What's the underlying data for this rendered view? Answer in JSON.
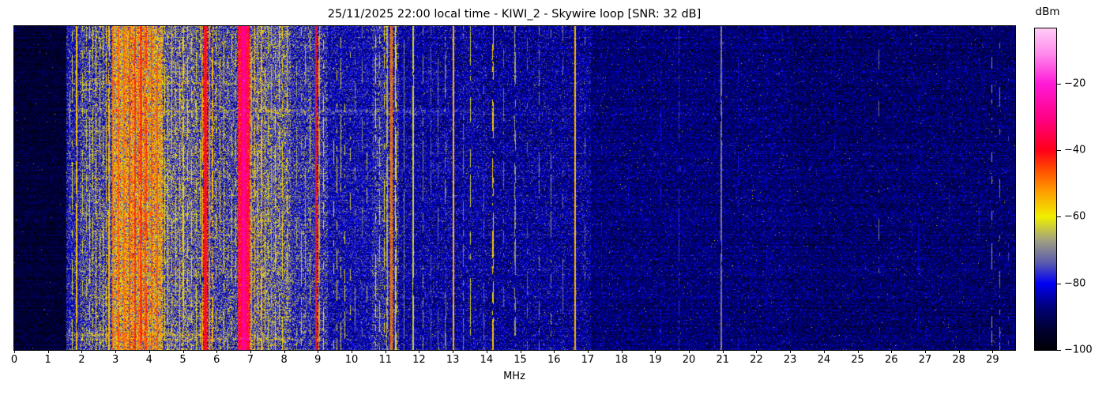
{
  "title": "25/11/2025 22:00 local time - KIWI_2 - Skywire loop [SNR: 32 dB]",
  "chart_data": {
    "type": "heatmap",
    "subtype": "radio-spectrum-waterfall",
    "title": "25/11/2025 22:00 local time - KIWI_2 - Skywire loop [SNR: 32 dB]",
    "xlabel": "MHz",
    "x_range_mhz": [
      0,
      29.67
    ],
    "x_ticks": [
      0,
      1,
      2,
      3,
      4,
      5,
      6,
      7,
      8,
      9,
      10,
      11,
      12,
      13,
      14,
      15,
      16,
      17,
      18,
      19,
      20,
      21,
      22,
      23,
      24,
      25,
      26,
      27,
      28,
      29
    ],
    "y_axis": "time (no ticks or labels shown)",
    "grid": false,
    "colorbar": {
      "label": "dBm",
      "vmax_dbm": -3.4,
      "vmin_dbm": -100,
      "ticks": [
        {
          "value": -20,
          "label": "−20"
        },
        {
          "value": -40,
          "label": "−40"
        },
        {
          "value": -60,
          "label": "−60"
        },
        {
          "value": -80,
          "label": "−80"
        },
        {
          "value": -100,
          "label": "−100"
        }
      ],
      "colormap_stops_dbm_hex": [
        [
          -100,
          "#000005"
        ],
        [
          -94,
          "#000030"
        ],
        [
          -87,
          "#00007a"
        ],
        [
          -80,
          "#0000f5"
        ],
        [
          -74,
          "#5858b0"
        ],
        [
          -67,
          "#a0a080"
        ],
        [
          -60,
          "#f0f000"
        ],
        [
          -52,
          "#ff9800"
        ],
        [
          -46,
          "#ff4e00"
        ],
        [
          -40,
          "#ff0018"
        ],
        [
          -31,
          "#ff0080"
        ],
        [
          -20,
          "#ff1ad8"
        ],
        [
          -11,
          "#ff8aec"
        ],
        [
          -3.4,
          "#ffccf6"
        ]
      ]
    },
    "noise_floor_bands_legend": [
      "f_start_mhz",
      "f_end_mhz",
      "base_dbm",
      "sigma_db"
    ],
    "noise_floor_bands": [
      [
        0.0,
        1.55,
        -94,
        4
      ],
      [
        1.55,
        1.95,
        -80,
        7
      ],
      [
        1.95,
        2.9,
        -76,
        9
      ],
      [
        2.9,
        4.4,
        -62,
        10
      ],
      [
        4.4,
        5.45,
        -73,
        9
      ],
      [
        5.45,
        6.62,
        -76,
        9
      ],
      [
        6.62,
        6.98,
        -38,
        6
      ],
      [
        6.98,
        8.2,
        -73,
        9
      ],
      [
        8.2,
        9.3,
        -78,
        8
      ],
      [
        9.3,
        10.6,
        -82,
        6
      ],
      [
        10.6,
        11.4,
        -79,
        8
      ],
      [
        11.4,
        14.0,
        -84,
        6
      ],
      [
        14.0,
        17.1,
        -85,
        6
      ],
      [
        17.1,
        23.0,
        -88,
        5
      ],
      [
        23.0,
        29.67,
        -89,
        5
      ]
    ],
    "carriers_legend": [
      "freq_mhz",
      "peak_dbm",
      "width_px",
      "continuity_0_1"
    ],
    "carriers": [
      [
        1.63,
        -66,
        1,
        0.35
      ],
      [
        1.72,
        -62,
        1,
        0.5
      ],
      [
        1.85,
        -56,
        2,
        0.95
      ],
      [
        2.02,
        -63,
        1,
        0.5
      ],
      [
        2.12,
        -66,
        1,
        0.4
      ],
      [
        2.22,
        -62,
        1,
        0.6
      ],
      [
        2.32,
        -60,
        1,
        0.7
      ],
      [
        2.42,
        -58,
        1,
        0.75
      ],
      [
        2.52,
        -62,
        1,
        0.6
      ],
      [
        2.62,
        -59,
        1,
        0.7
      ],
      [
        2.72,
        -57,
        1,
        0.72
      ],
      [
        2.82,
        -55,
        2,
        0.8
      ],
      [
        2.92,
        -50,
        2,
        0.85
      ],
      [
        3.0,
        -52,
        1,
        0.8
      ],
      [
        3.08,
        -48,
        2,
        0.85
      ],
      [
        3.17,
        -54,
        1,
        0.8
      ],
      [
        3.25,
        -49,
        2,
        0.85
      ],
      [
        3.33,
        -52,
        1,
        0.8
      ],
      [
        3.42,
        -46,
        2,
        0.9
      ],
      [
        3.5,
        -50,
        1,
        0.85
      ],
      [
        3.58,
        -44,
        2,
        0.9
      ],
      [
        3.67,
        -48,
        1,
        0.85
      ],
      [
        3.75,
        -42,
        3,
        0.95
      ],
      [
        3.84,
        -47,
        1,
        0.85
      ],
      [
        3.92,
        -45,
        2,
        0.9
      ],
      [
        4.0,
        -50,
        1,
        0.8
      ],
      [
        4.08,
        -47,
        2,
        0.85
      ],
      [
        4.17,
        -51,
        1,
        0.8
      ],
      [
        4.25,
        -48,
        2,
        0.85
      ],
      [
        4.33,
        -53,
        1,
        0.8
      ],
      [
        4.45,
        -58,
        1,
        0.7
      ],
      [
        4.55,
        -60,
        1,
        0.65
      ],
      [
        4.65,
        -57,
        1,
        0.7
      ],
      [
        4.78,
        -59,
        1,
        0.65
      ],
      [
        4.9,
        -56,
        1,
        0.7
      ],
      [
        5.0,
        -58,
        2,
        0.75
      ],
      [
        5.12,
        -61,
        1,
        0.6
      ],
      [
        5.25,
        -59,
        1,
        0.65
      ],
      [
        5.38,
        -62,
        1,
        0.55
      ],
      [
        5.5,
        -60,
        1,
        0.6
      ],
      [
        5.58,
        -52,
        2,
        0.8
      ],
      [
        5.67,
        -38,
        4,
        1
      ],
      [
        5.78,
        -50,
        2,
        0.8
      ],
      [
        5.88,
        -55,
        2,
        0.7
      ],
      [
        5.98,
        -60,
        1,
        0.6
      ],
      [
        6.08,
        -57,
        1,
        0.65
      ],
      [
        6.2,
        -60,
        1,
        0.5
      ],
      [
        6.32,
        -63,
        1,
        0.45
      ],
      [
        6.45,
        -60,
        1,
        0.55
      ],
      [
        6.55,
        -56,
        1,
        0.65
      ],
      [
        6.79,
        -29,
        7,
        1
      ],
      [
        7.02,
        -52,
        2,
        0.8
      ],
      [
        7.12,
        -56,
        1,
        0.7
      ],
      [
        7.22,
        -58,
        1,
        0.65
      ],
      [
        7.32,
        -55,
        2,
        0.75
      ],
      [
        7.42,
        -58,
        1,
        0.65
      ],
      [
        7.52,
        -61,
        1,
        0.55
      ],
      [
        7.62,
        -66,
        1,
        0.5
      ],
      [
        7.72,
        -59,
        1,
        0.6
      ],
      [
        7.85,
        -62,
        1,
        0.5
      ],
      [
        7.95,
        -58,
        1,
        0.6
      ],
      [
        8.08,
        -61,
        1,
        0.5
      ],
      [
        8.35,
        -68,
        1,
        0.45
      ],
      [
        8.5,
        -64,
        1,
        0.5
      ],
      [
        8.62,
        -66,
        1,
        0.4
      ],
      [
        8.75,
        -63,
        1,
        0.5
      ],
      [
        8.95,
        -40,
        2,
        1
      ],
      [
        9.05,
        -52,
        2,
        0.7
      ],
      [
        9.15,
        -60,
        1,
        0.5
      ],
      [
        9.45,
        -62,
        1,
        0.35
      ],
      [
        9.55,
        -60,
        1,
        0.4
      ],
      [
        9.68,
        -63,
        1,
        0.35
      ],
      [
        9.8,
        -61,
        1,
        0.35
      ],
      [
        9.95,
        -64,
        1,
        0.3
      ],
      [
        10.1,
        -68,
        1,
        0.3
      ],
      [
        10.3,
        -70,
        1,
        0.25
      ],
      [
        10.45,
        -66,
        1,
        0.3
      ],
      [
        10.7,
        -60,
        1,
        0.5
      ],
      [
        10.82,
        -64,
        1,
        0.45
      ],
      [
        10.95,
        -58,
        1,
        0.6
      ],
      [
        11.05,
        -66,
        2,
        0.7
      ],
      [
        11.16,
        -46,
        3,
        1
      ],
      [
        11.3,
        -60,
        2,
        0.7
      ],
      [
        11.55,
        -70,
        1,
        0.75
      ],
      [
        11.82,
        -62,
        2,
        0.9
      ],
      [
        12.1,
        -69,
        1,
        0.6
      ],
      [
        12.35,
        -74,
        1,
        0.3
      ],
      [
        12.55,
        -72,
        1,
        0.5
      ],
      [
        12.78,
        -70,
        2,
        0.4
      ],
      [
        13.02,
        -55,
        2,
        1
      ],
      [
        13.3,
        -71,
        1,
        0.5
      ],
      [
        13.52,
        -63,
        1,
        0.4
      ],
      [
        13.9,
        -73,
        1,
        0.4
      ],
      [
        14.18,
        -57,
        2,
        0.55
      ],
      [
        14.5,
        -72,
        1,
        0.35
      ],
      [
        14.85,
        -68,
        2,
        0.55
      ],
      [
        15.2,
        -73,
        1,
        0.3
      ],
      [
        15.55,
        -70,
        1,
        0.4
      ],
      [
        15.9,
        -69,
        1,
        0.4
      ],
      [
        16.25,
        -73,
        1,
        0.35
      ],
      [
        16.62,
        -55,
        2,
        1
      ],
      [
        16.9,
        -72,
        1,
        0.3
      ],
      [
        17.4,
        -81,
        1,
        0.3
      ],
      [
        18.2,
        -82,
        1,
        0.3
      ],
      [
        19.15,
        -81,
        1,
        0.3
      ],
      [
        19.7,
        -77,
        1,
        0.5
      ],
      [
        20.95,
        -71,
        2,
        0.95
      ],
      [
        21.45,
        -80,
        1,
        0.35
      ],
      [
        22.3,
        -83,
        1,
        0.25
      ],
      [
        23.4,
        -82,
        1,
        0.25
      ],
      [
        24.3,
        -83,
        1,
        0.2
      ],
      [
        25.62,
        -72,
        1,
        0.35
      ],
      [
        26.8,
        -83,
        1,
        0.2
      ],
      [
        27.7,
        -82,
        1,
        0.25
      ],
      [
        28.6,
        -80,
        1,
        0.3
      ],
      [
        28.97,
        -68,
        1,
        0.35
      ],
      [
        29.2,
        -71,
        1,
        0.35
      ],
      [
        29.45,
        -76,
        1,
        0.3
      ]
    ],
    "time_streaks_legend": [
      "y_fraction_from_top",
      "f_start_mhz",
      "f_end_mhz",
      "boost_db",
      "half_rows"
    ],
    "time_streaks": [
      [
        0.175,
        1.6,
        6.6,
        5,
        2
      ],
      [
        0.26,
        1.6,
        13.6,
        6,
        2
      ],
      [
        0.268,
        8.0,
        21.0,
        3,
        2
      ],
      [
        0.322,
        1.6,
        5.6,
        5,
        2
      ],
      [
        0.47,
        1.6,
        5.2,
        3,
        2
      ],
      [
        0.58,
        1.6,
        5.5,
        4,
        2
      ],
      [
        0.635,
        1.6,
        5.5,
        3,
        2
      ],
      [
        0.95,
        1.55,
        5.6,
        9,
        2
      ],
      [
        0.965,
        1.55,
        8.6,
        5,
        2
      ]
    ]
  }
}
